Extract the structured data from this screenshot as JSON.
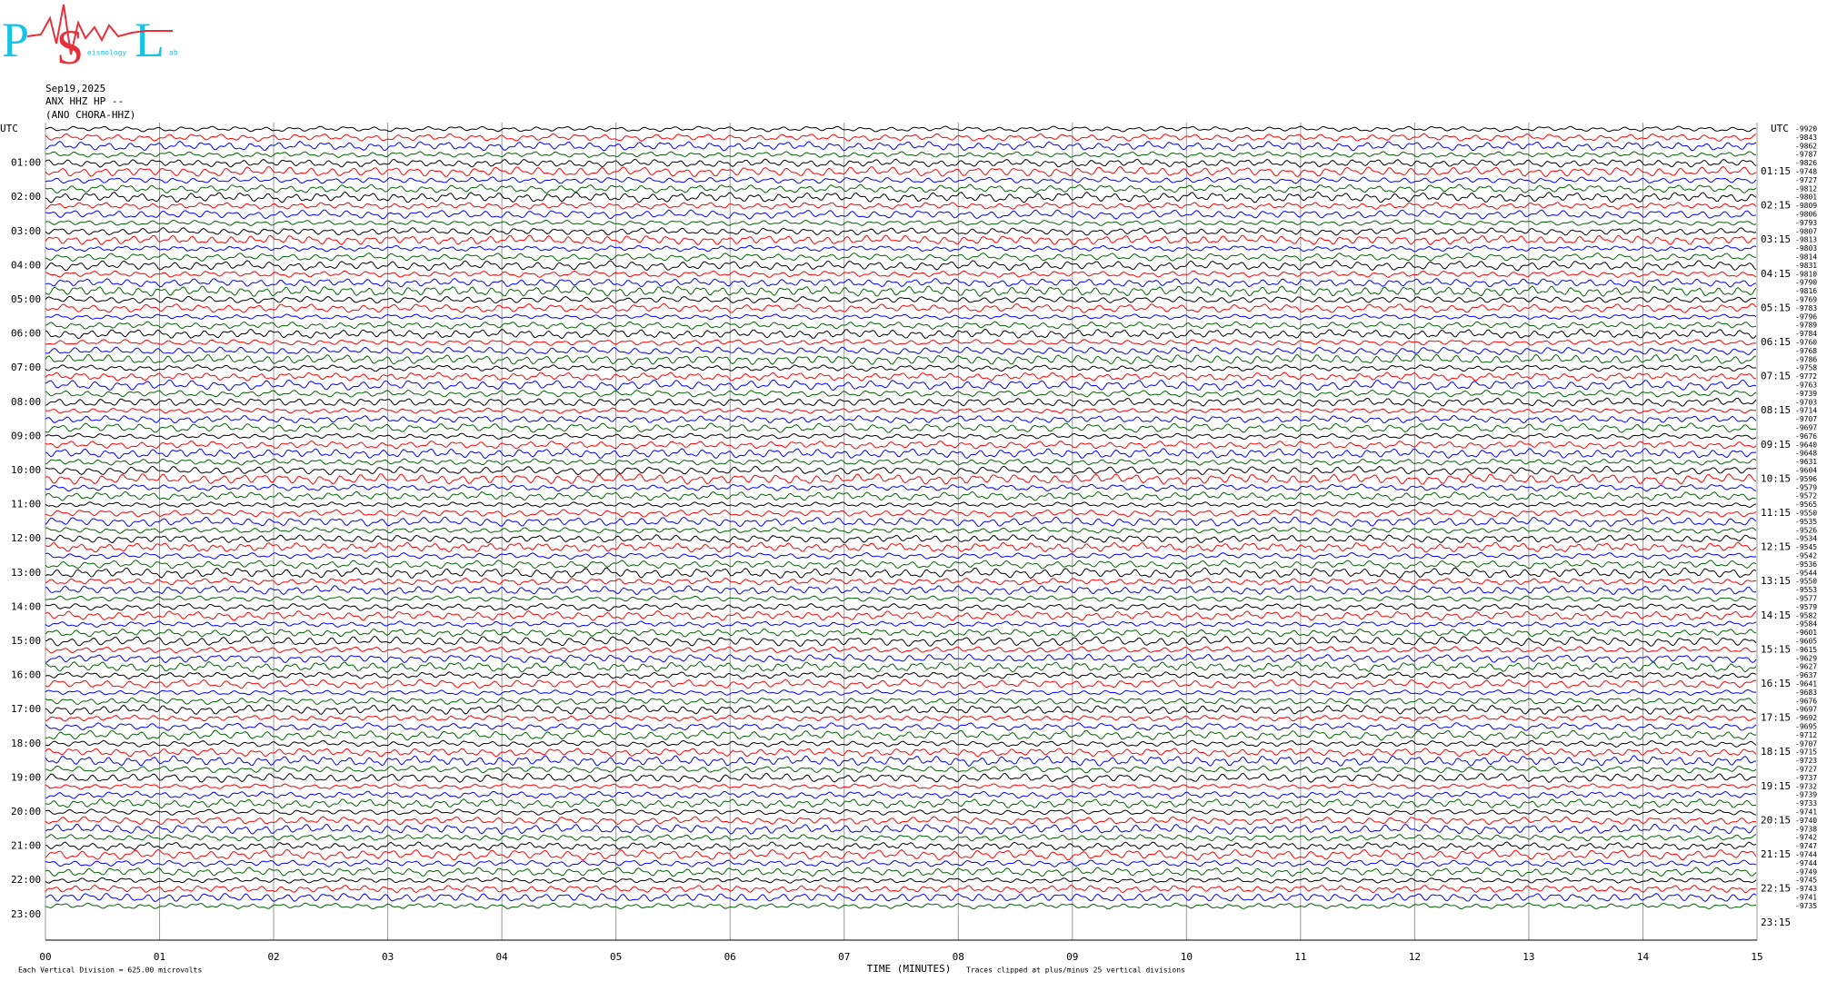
{
  "header": {
    "logo_letters": [
      "P",
      "S",
      "L"
    ],
    "logo_small": [
      "eismology",
      "ab"
    ],
    "date": "Sep19,2025",
    "station": "ANX HHZ HP --",
    "network": "(ANO CHORA-HHZ)"
  },
  "plot": {
    "utc_left": "UTC",
    "utc_right": "UTC",
    "left_labels": [
      "01:00",
      "02:00",
      "03:00",
      "04:00",
      "05:00",
      "06:00",
      "07:00",
      "08:00",
      "09:00",
      "10:00",
      "11:00",
      "12:00",
      "13:00",
      "14:00",
      "15:00",
      "16:00",
      "17:00",
      "18:00",
      "19:00",
      "20:00",
      "21:00",
      "22:00",
      "23:00"
    ],
    "right_labels": [
      "01:15",
      "02:15",
      "03:15",
      "04:15",
      "05:15",
      "06:15",
      "07:15",
      "08:15",
      "09:15",
      "10:15",
      "11:15",
      "12:15",
      "13:15",
      "14:15",
      "15:15",
      "16:15",
      "17:15",
      "18:15",
      "19:15",
      "20:15",
      "21:15",
      "22:15",
      "23:15"
    ],
    "offsets": [
      -9920,
      -9843,
      -9862,
      -9787,
      -9826,
      -9748,
      -9727,
      -9812,
      -9801,
      -9809,
      -9806,
      -9793,
      -9807,
      -9813,
      -9803,
      -9814,
      -9831,
      -9810,
      -9790,
      -9816,
      -9769,
      -9783,
      -9796,
      -9789,
      -9784,
      -9760,
      -9768,
      -9786,
      -9758,
      -9772,
      -9763,
      -9739,
      -9703,
      -9714,
      -9707,
      -9697,
      -9676,
      -9640,
      -9648,
      -9631,
      -9604,
      -9596,
      -9579,
      -9572,
      -9565,
      -9550,
      -9535,
      -9526,
      -9534,
      -9545,
      -9542,
      -9536,
      -9544,
      -9550,
      -9553,
      -9577,
      -9579,
      -9582,
      -9584,
      -9601,
      -9605,
      -9615,
      -9629,
      -9627,
      -9637,
      -9641,
      -9683,
      -9676,
      -9697,
      -9692,
      -9695,
      -9712,
      -9707,
      -9715,
      -9723,
      -9727,
      -9737,
      -9732,
      -9739,
      -9733,
      -9741,
      -9740,
      -9738,
      -9742,
      -9747,
      -9744,
      -9744,
      -9749,
      -9745,
      -9743,
      -9741,
      -9735
    ],
    "trace_colors": [
      "#000000",
      "#ff0000",
      "#0000ff",
      "#006400"
    ],
    "x_ticks": [
      "00",
      "01",
      "02",
      "03",
      "04",
      "05",
      "06",
      "07",
      "08",
      "09",
      "10",
      "11",
      "12",
      "13",
      "14",
      "15"
    ],
    "x_label": "TIME (MINUTES)",
    "footer_left": "Each Vertical Division =  625.00 microvolts",
    "footer_right": "Traces clipped at plus/minus 25 vertical divisions"
  }
}
